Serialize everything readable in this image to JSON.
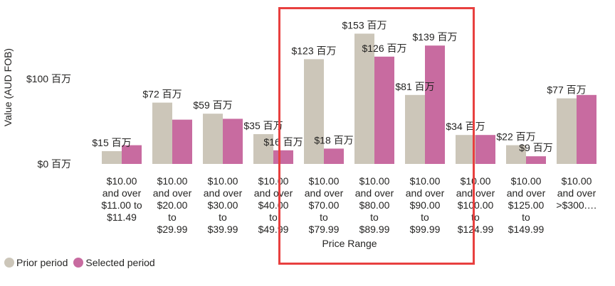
{
  "chart_data": {
    "type": "bar",
    "xlabel": "Price Range",
    "ylabel": "Value (AUD FOB)",
    "yticks": [
      {
        "value": 0,
        "label": "$0 百万"
      },
      {
        "value": 100,
        "label": "$100 百万"
      }
    ],
    "ylim": [
      0,
      160
    ],
    "categories": [
      [
        "$10.00",
        "and over",
        "$11.00 to",
        "$11.49"
      ],
      [
        "$10.00",
        "and over",
        "$20.00",
        "to",
        "$29.99"
      ],
      [
        "$10.00",
        "and over",
        "$30.00",
        "to",
        "$39.99"
      ],
      [
        "$10.00",
        "and over",
        "$40.00",
        "to",
        "$49.99"
      ],
      [
        "$10.00",
        "and over",
        "$70.00",
        "to",
        "$79.99"
      ],
      [
        "$10.00",
        "and over",
        "$80.00",
        "to",
        "$89.99"
      ],
      [
        "$10.00",
        "and over",
        "$90.00",
        "to",
        "$99.99"
      ],
      [
        "$10.00",
        "and over",
        "$100.00",
        "to",
        "$124.99"
      ],
      [
        "$10.00",
        "and over",
        "$125.00",
        "to",
        "$149.99"
      ],
      [
        "$10.00",
        "and over",
        ">$300.…"
      ]
    ],
    "series": [
      {
        "name": "Prior period",
        "color": "#ccc6b9",
        "values": [
          15,
          72,
          59,
          35,
          123,
          153,
          81,
          34,
          22,
          77
        ],
        "labels": [
          "$15 百万",
          "$72 百万",
          "$59 百万",
          "$35 百万",
          "$123 百万",
          "$153 百万",
          "$81 百万",
          "$34 百万",
          "$22 百万",
          "$77 百万"
        ]
      },
      {
        "name": "Selected period",
        "color": "#c86ba0",
        "values": [
          22,
          52,
          53,
          16,
          18,
          126,
          139,
          34,
          9,
          81
        ],
        "labels": [
          "",
          "",
          "",
          "$16 百万",
          "$18 百万",
          "$126 百万",
          "$139 百万",
          "",
          "$9 百万",
          ""
        ]
      }
    ],
    "legend_position": "bottom-left",
    "grid": false
  }
}
